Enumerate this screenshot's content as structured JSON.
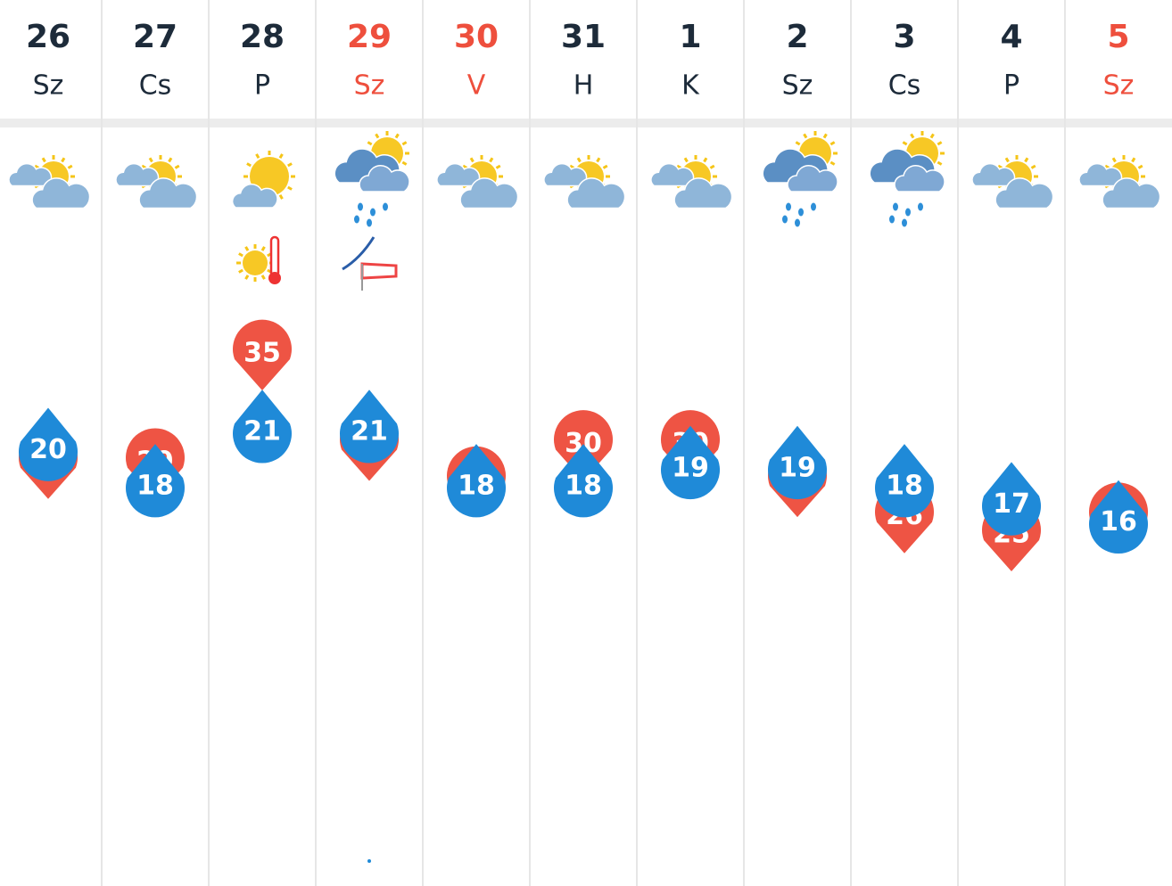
{
  "days": [
    {
      "date": "26",
      "weekday": "Sz",
      "color": "#1d2b3a",
      "icon": "partly-cloudy",
      "high": 29,
      "low": 20
    },
    {
      "date": "27",
      "weekday": "Cs",
      "color": "#1d2b3a",
      "icon": "partly-cloudy",
      "high": 29,
      "low": 18
    },
    {
      "date": "28",
      "weekday": "P",
      "color": "#1d2b3a",
      "icon": "sunny-cloud",
      "warning": "heat",
      "high": 35,
      "low": 21
    },
    {
      "date": "29",
      "weekday": "Sz",
      "color": "#ee4f3d",
      "icon": "rain",
      "warning": "wind",
      "high": 30,
      "low": 21
    },
    {
      "date": "30",
      "weekday": "V",
      "color": "#ee4f3d",
      "icon": "partly-cloudy",
      "high": 28,
      "low": 18
    },
    {
      "date": "31",
      "weekday": "H",
      "color": "#1d2b3a",
      "icon": "partly-cloudy",
      "high": 30,
      "low": 18
    },
    {
      "date": "1",
      "weekday": "K",
      "color": "#1d2b3a",
      "icon": "partly-cloudy",
      "high": 30,
      "low": 19
    },
    {
      "date": "2",
      "weekday": "Sz",
      "color": "#1d2b3a",
      "icon": "rain",
      "high": 28,
      "low": 19
    },
    {
      "date": "3",
      "weekday": "Cs",
      "color": "#1d2b3a",
      "icon": "rain",
      "high": 26,
      "low": 18
    },
    {
      "date": "4",
      "weekday": "P",
      "color": "#1d2b3a",
      "icon": "partly-cloudy",
      "high": 25,
      "low": 17
    },
    {
      "date": "5",
      "weekday": "Sz",
      "color": "#ee4f3d",
      "icon": "partly-cloudy",
      "high": 26,
      "low": 16
    }
  ]
}
